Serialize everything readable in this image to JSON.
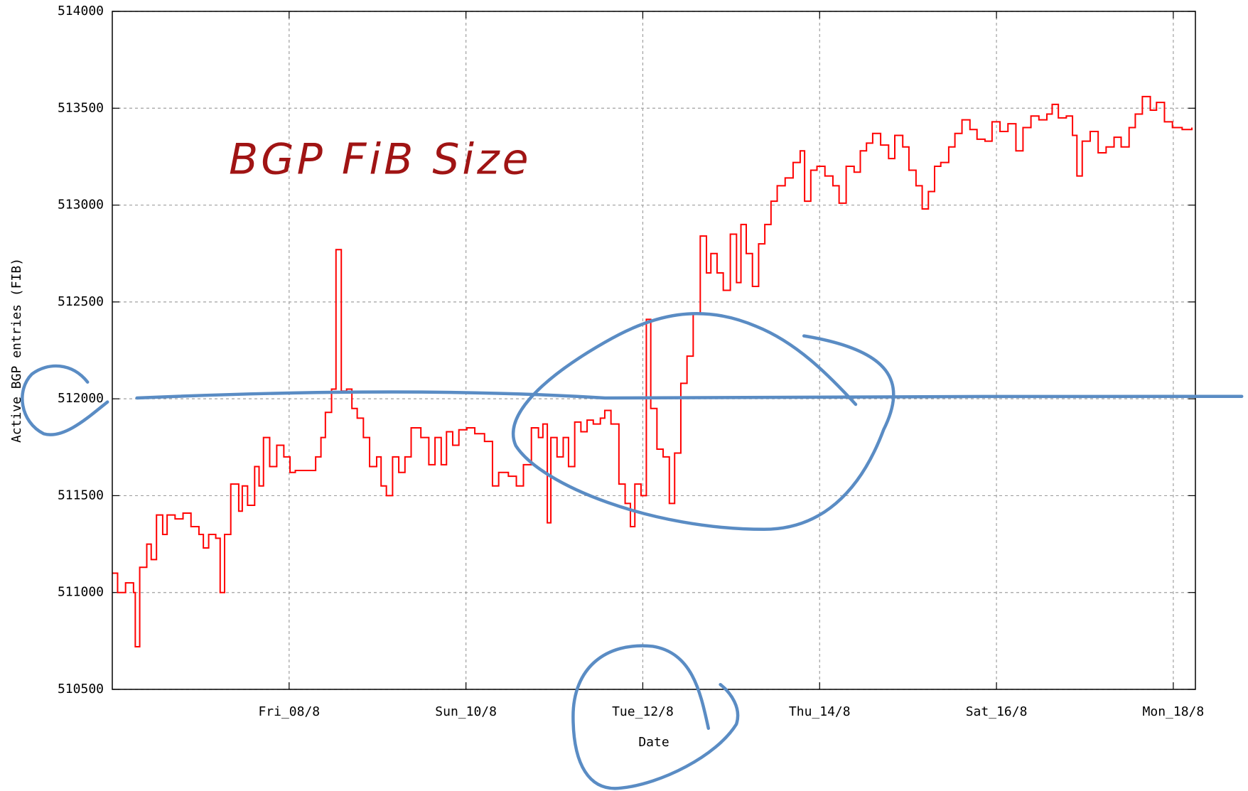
{
  "chart_data": {
    "type": "step",
    "annotation": "BGP FiB Size",
    "x_label": "Date",
    "y_label": "Active BGP entries (FIB)",
    "xlim": [
      6,
      18.25
    ],
    "xticks": [
      {
        "value": 8,
        "label": "Fri_08/8"
      },
      {
        "value": 10,
        "label": "Sun_10/8"
      },
      {
        "value": 12,
        "label": "Tue_12/8"
      },
      {
        "value": 14,
        "label": "Thu_14/8"
      },
      {
        "value": 16,
        "label": "Sat_16/8"
      },
      {
        "value": 18,
        "label": "Mon_18/8"
      }
    ],
    "ylim": [
      510500,
      514000
    ],
    "yticks": [
      510500,
      511000,
      511500,
      512000,
      512500,
      513000,
      513500,
      514000
    ],
    "grid": true,
    "series": [
      {
        "color": "#ff0000",
        "x": [
          6.0,
          6.06,
          6.15,
          6.24,
          6.26,
          6.31,
          6.39,
          6.44,
          6.5,
          6.57,
          6.62,
          6.71,
          6.8,
          6.89,
          6.98,
          7.03,
          7.09,
          7.17,
          7.22,
          7.27,
          7.34,
          7.43,
          7.47,
          7.53,
          7.61,
          7.66,
          7.71,
          7.78,
          7.86,
          7.94,
          8.01,
          8.07,
          8.14,
          8.3,
          8.36,
          8.41,
          8.48,
          8.53,
          8.59,
          8.65,
          8.71,
          8.77,
          8.84,
          8.91,
          8.99,
          9.04,
          9.1,
          9.17,
          9.24,
          9.31,
          9.38,
          9.49,
          9.58,
          9.65,
          9.72,
          9.78,
          9.85,
          9.92,
          10.01,
          10.1,
          10.21,
          10.3,
          10.37,
          10.48,
          10.57,
          10.65,
          10.74,
          10.82,
          10.87,
          10.92,
          10.96,
          11.03,
          11.1,
          11.16,
          11.23,
          11.3,
          11.37,
          11.44,
          11.52,
          11.57,
          11.64,
          11.73,
          11.8,
          11.86,
          11.91,
          11.98,
          12.04,
          12.09,
          12.16,
          12.23,
          12.3,
          12.36,
          12.43,
          12.5,
          12.57,
          12.65,
          12.72,
          12.77,
          12.84,
          12.91,
          12.99,
          13.06,
          13.11,
          13.17,
          13.24,
          13.31,
          13.38,
          13.45,
          13.52,
          13.61,
          13.7,
          13.78,
          13.83,
          13.9,
          13.97,
          14.06,
          14.15,
          14.22,
          14.3,
          14.39,
          14.46,
          14.53,
          14.6,
          14.69,
          14.78,
          14.85,
          14.94,
          15.01,
          15.09,
          15.16,
          15.23,
          15.3,
          15.37,
          15.46,
          15.53,
          15.61,
          15.7,
          15.78,
          15.87,
          15.95,
          16.04,
          16.13,
          16.22,
          16.3,
          16.39,
          16.48,
          16.57,
          16.63,
          16.7,
          16.79,
          16.86,
          16.91,
          16.97,
          17.06,
          17.15,
          17.24,
          17.33,
          17.41,
          17.5,
          17.57,
          17.65,
          17.74,
          17.81,
          17.9,
          17.99,
          18.1,
          18.21
        ],
        "values": [
          511100,
          511000,
          511050,
          511000,
          510720,
          511130,
          511250,
          511170,
          511400,
          511300,
          511400,
          511380,
          511410,
          511340,
          511300,
          511230,
          511300,
          511280,
          511000,
          511300,
          511560,
          511420,
          511550,
          511450,
          511650,
          511550,
          511800,
          511650,
          511760,
          511700,
          511620,
          511630,
          511630,
          511700,
          511800,
          511930,
          512050,
          512770,
          512040,
          512050,
          511950,
          511900,
          511800,
          511650,
          511700,
          511550,
          511500,
          511700,
          511620,
          511700,
          511850,
          511800,
          511660,
          511800,
          511660,
          511830,
          511760,
          511840,
          511850,
          511820,
          511780,
          511550,
          511620,
          511600,
          511550,
          511660,
          511850,
          511800,
          511870,
          511360,
          511800,
          511700,
          511800,
          511650,
          511880,
          511830,
          511890,
          511870,
          511900,
          511940,
          511870,
          511560,
          511460,
          511340,
          511560,
          511500,
          512410,
          511950,
          511740,
          511700,
          511460,
          511720,
          512080,
          512220,
          512440,
          512840,
          512650,
          512750,
          512650,
          512560,
          512850,
          512600,
          512900,
          512750,
          512580,
          512800,
          512900,
          513020,
          513100,
          513140,
          513220,
          513280,
          513020,
          513180,
          513200,
          513150,
          513100,
          513010,
          513200,
          513170,
          513280,
          513320,
          513370,
          513310,
          513240,
          513360,
          513300,
          513180,
          513100,
          512980,
          513070,
          513200,
          513220,
          513300,
          513370,
          513440,
          513390,
          513340,
          513330,
          513430,
          513380,
          513420,
          513280,
          513400,
          513460,
          513440,
          513470,
          513520,
          513450,
          513460,
          513360,
          513150,
          513330,
          513380,
          513270,
          513300,
          513350,
          513300,
          513400,
          513470,
          513560,
          513490,
          513530,
          513430,
          513400,
          513390,
          513400
        ]
      }
    ]
  }
}
